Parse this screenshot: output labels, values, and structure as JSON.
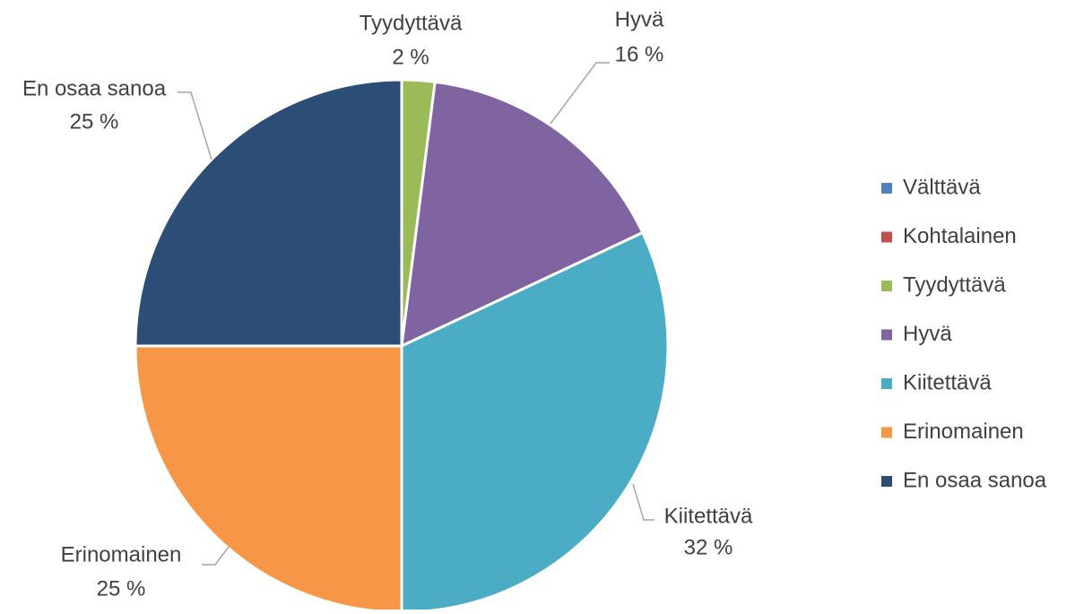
{
  "chart_data": {
    "type": "pie",
    "categories": [
      "Välttävä",
      "Kohtalainen",
      "Tyydyttävä",
      "Hyvä",
      "Kiitettävä",
      "Erinomainen",
      "En osaa sanoa"
    ],
    "values": [
      0,
      0,
      2,
      16,
      32,
      25,
      25
    ],
    "value_labels": [
      null,
      null,
      "2 %",
      "16 %",
      "32 %",
      "25 %",
      "25 %"
    ],
    "colors": [
      "#4f81bd",
      "#c0504d",
      "#9bbb59",
      "#8064a2",
      "#4bacc6",
      "#f79646",
      "#2c4d75"
    ],
    "legend": "right"
  }
}
